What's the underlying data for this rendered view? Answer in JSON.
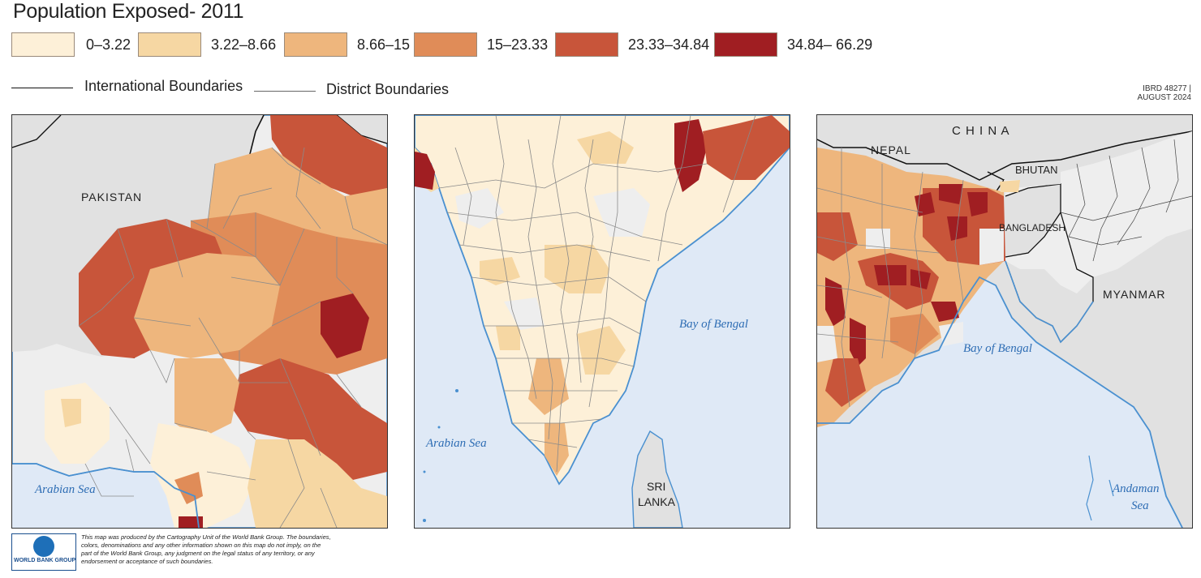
{
  "title": "Population Exposed- 2011",
  "legend": [
    {
      "label": "0–3.22",
      "color": "#fdf0d8"
    },
    {
      "label": "3.22–8.66",
      "color": "#f6d7a3"
    },
    {
      "label": "8.66–15",
      "color": "#eeb67d"
    },
    {
      "label": "15–23.33",
      "color": "#e08c58"
    },
    {
      "label": "23.33–34.84",
      "color": "#c8553a"
    },
    {
      "label": "34.84– 66.29",
      "color": "#a01e22"
    }
  ],
  "boundaries": {
    "international": "International Boundaries",
    "district": "District Boundaries"
  },
  "ibrd": {
    "line1": "IBRD 48277 |",
    "line2": "AUGUST 2024"
  },
  "panels": {
    "west": {
      "pakistan": "PAKISTAN",
      "sea": "Arabian Sea"
    },
    "south": {
      "bay": "Bay of Bengal",
      "sea": "Arabian Sea",
      "srilanka1": "SRI",
      "srilanka2": "LANKA"
    },
    "east": {
      "china": "C H I N A",
      "nepal": "NEPAL",
      "bhutan": "BHUTAN",
      "bangladesh": "BANGLADESH",
      "myanmar": "MYANMAR",
      "bay": "Bay of Bengal",
      "andaman1": "Andaman",
      "andaman2": "Sea"
    }
  },
  "footer": {
    "logo_text": "WORLD BANK GROUP",
    "disclaimer_line1": "This map was produced by the Cartography Unit of the World Bank Group. The boundaries,",
    "disclaimer_line2": "colors, denominations and any other information shown on this map do not imply, on the",
    "disclaimer_line3": "part of the World Bank Group, any judgment on the legal status of any territory, or any",
    "disclaimer_line4": "endorsement or acceptance of such boundaries."
  },
  "colors": {
    "land_na": "#eeeeee",
    "foreign": "#e1e1e1",
    "sea": "#dfe9f6",
    "coast": "#4a90d0",
    "district": "#8a8a8a"
  }
}
